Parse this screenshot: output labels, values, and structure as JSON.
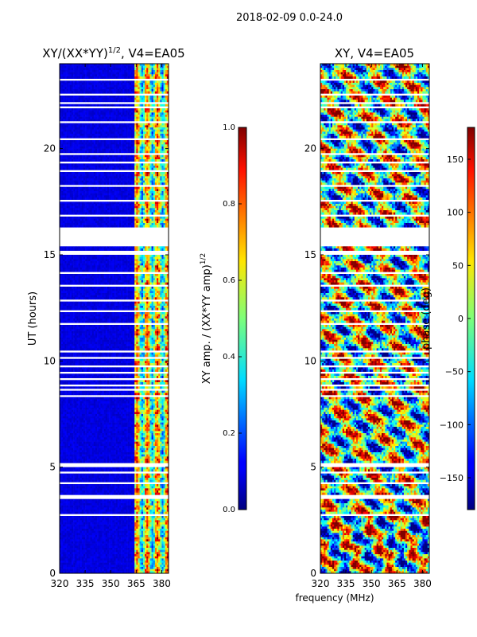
{
  "figure": {
    "suptitle": "2018-02-09 0.0-24.0",
    "xlabel": "frequency (MHz)"
  },
  "chart_data": [
    {
      "type": "heatmap",
      "title": "XY/(XX*YY)",
      "title_exponent": "1/2",
      "title_suffix": ", V4=EA05",
      "ylabel": "UT (hours)",
      "xlim": [
        320,
        384
      ],
      "ylim": [
        0,
        24
      ],
      "xticks": [
        320,
        335,
        350,
        365,
        380
      ],
      "yticks": [
        0,
        5,
        10,
        15,
        20
      ],
      "colorbar": {
        "label": "XY amp. / (XX*YY amp)",
        "label_exponent": "1/2",
        "ticks": [
          "0.0",
          "0.2",
          "0.4",
          "0.6",
          "0.8",
          "1.0"
        ],
        "range": [
          0,
          1
        ],
        "colormap": "jet"
      }
    },
    {
      "type": "heatmap",
      "title": "XY, V4=EA05",
      "xlim": [
        320,
        384
      ],
      "ylim": [
        0,
        24
      ],
      "xticks": [
        320,
        335,
        350,
        365,
        380
      ],
      "yticks": [
        0,
        5,
        10,
        15,
        20
      ],
      "colorbar": {
        "label": "phase (deg)",
        "ticks": [
          "−150",
          "−100",
          "−50",
          "0",
          "50",
          "100",
          "150"
        ],
        "tick_values": [
          -150,
          -100,
          -50,
          0,
          50,
          100,
          150
        ],
        "range": [
          -180,
          180
        ],
        "colormap": "jet"
      }
    }
  ],
  "flagged_gaps_ut": [
    [
      2.65,
      2.75
    ],
    [
      2.95,
      3.0
    ],
    [
      3.3,
      3.35
    ],
    [
      3.55,
      3.65
    ],
    [
      3.8,
      3.85
    ],
    [
      4.0,
      4.05
    ],
    [
      4.25,
      4.3
    ],
    [
      4.5,
      4.55
    ],
    [
      4.75,
      4.8
    ],
    [
      4.95,
      5.2
    ],
    [
      8.35,
      8.4
    ],
    [
      8.6,
      8.65
    ],
    [
      8.8,
      8.85
    ],
    [
      9.15,
      9.2
    ],
    [
      9.45,
      9.5
    ],
    [
      9.75,
      9.8
    ],
    [
      10.1,
      10.15
    ],
    [
      10.4,
      10.5
    ],
    [
      11.7,
      11.75
    ],
    [
      12.3,
      12.35
    ],
    [
      12.85,
      12.9
    ],
    [
      13.5,
      13.55
    ],
    [
      14.1,
      14.15
    ],
    [
      15.05,
      15.15
    ],
    [
      15.4,
      16.3
    ],
    [
      16.8,
      16.85
    ],
    [
      17.5,
      17.55
    ],
    [
      18.2,
      18.25
    ],
    [
      18.9,
      18.95
    ],
    [
      19.3,
      19.35
    ],
    [
      19.7,
      19.75
    ],
    [
      20.4,
      20.45
    ],
    [
      21.2,
      21.25
    ],
    [
      21.9,
      21.95
    ],
    [
      22.1,
      22.15
    ],
    [
      22.5,
      22.55
    ],
    [
      23.2,
      23.3
    ]
  ]
}
